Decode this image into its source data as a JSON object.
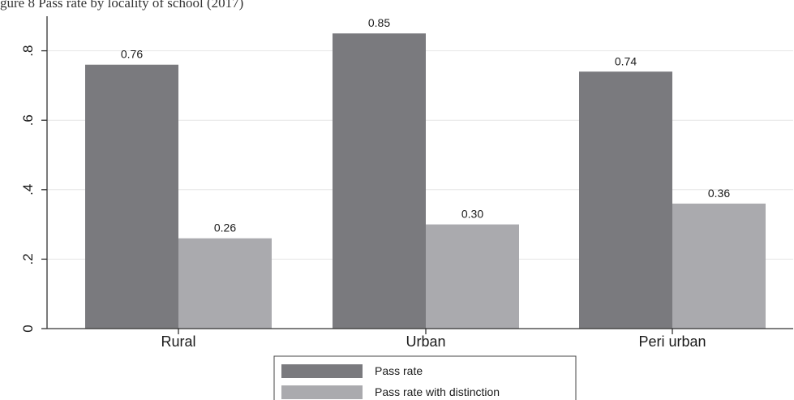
{
  "header": {
    "caption": "gure 8 Pass rate by locality of school (2017)"
  },
  "colors": {
    "pass_rate": "#7a7a7e",
    "pass_distinction": "#aaaaae",
    "grid": "#e6e6e6",
    "axis": "#333333"
  },
  "chart_data": {
    "type": "bar",
    "title": "",
    "xlabel": "",
    "ylabel": "",
    "categories": [
      "Rural",
      "Urban",
      "Peri urban"
    ],
    "series": [
      {
        "name": "Pass rate",
        "values": [
          0.76,
          0.85,
          0.74
        ],
        "labels": [
          "0.76",
          "0.85",
          "0.74"
        ]
      },
      {
        "name": "Pass rate with distinction",
        "values": [
          0.26,
          0.3,
          0.36
        ],
        "labels": [
          "0.26",
          "0.30",
          "0.36"
        ]
      }
    ],
    "yticks": [
      0,
      0.2,
      0.4,
      0.6,
      0.8
    ],
    "ytick_labels": [
      "0",
      ".2",
      ".4",
      ".6",
      ".8"
    ],
    "ylim": [
      0,
      0.88
    ],
    "grid": true,
    "legend_position": "bottom-center"
  }
}
